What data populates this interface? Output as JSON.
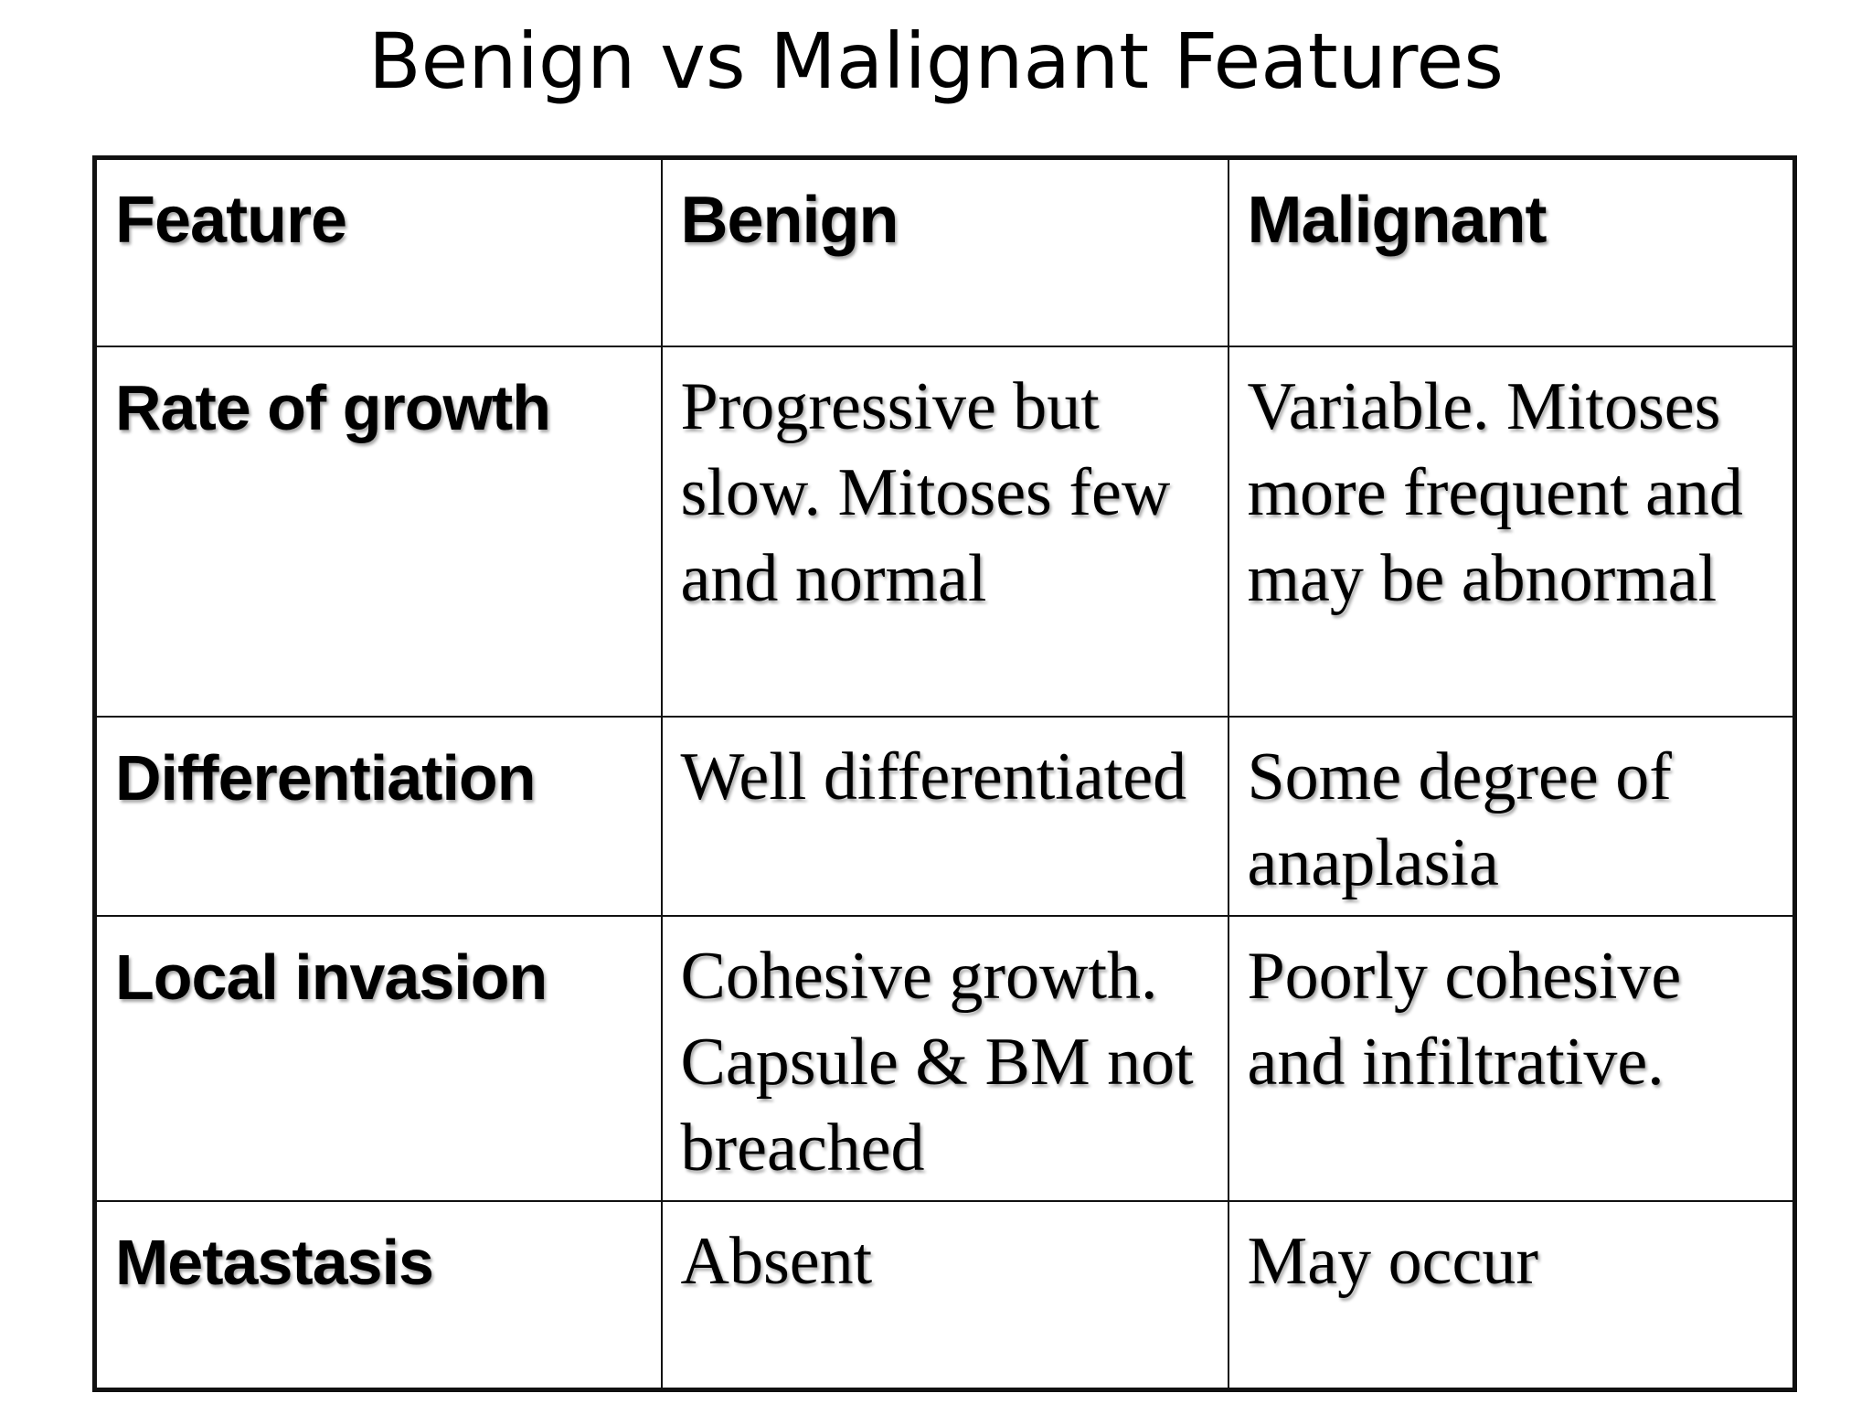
{
  "title": "Benign vs Malignant Features",
  "table": {
    "headers": [
      "Feature",
      "Benign",
      "Malignant"
    ],
    "rows": [
      {
        "feature": "Rate of growth",
        "benign": "Progressive but slow. Mitoses few and normal",
        "malignant": "Variable. Mitoses more frequent and may be abnormal"
      },
      {
        "feature": "Differentiation",
        "benign": "Well differentiated",
        "malignant": "Some degree of anaplasia"
      },
      {
        "feature": "Local invasion",
        "benign": "Cohesive growth. Capsule & BM not breached",
        "malignant": "Poorly cohesive and infiltrative."
      },
      {
        "feature": "Metastasis",
        "benign": "Absent",
        "malignant": "May occur"
      }
    ]
  }
}
